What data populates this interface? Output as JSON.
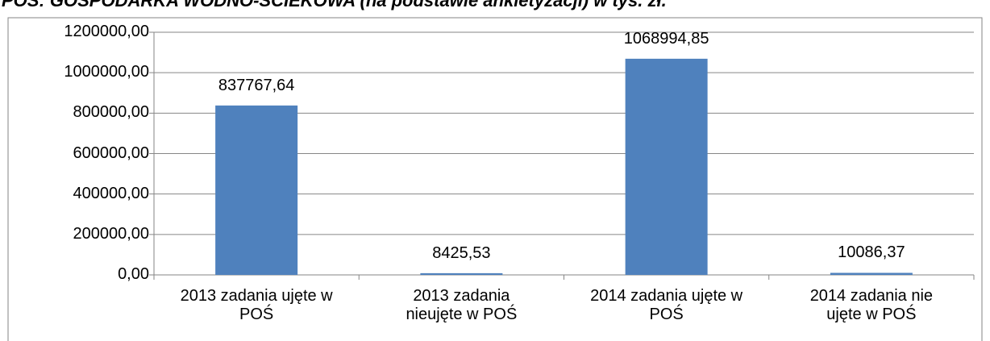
{
  "chart_data": {
    "type": "bar",
    "title": "POŚ: GOSPODARKA WODNO-ŚCIEKOWA (na podstawie ankietyzacji) w tys. zł.",
    "categories": [
      "2013 zadania ujęte w\nPOŚ",
      "2013 zadania\nnieujęte w POŚ",
      "2014 zadania ujęte w\nPOŚ",
      "2014 zadania nie\nujęte w POŚ"
    ],
    "values": [
      837767.64,
      8425.53,
      1068994.85,
      10086.37
    ],
    "value_labels": [
      "837767,64",
      "8425,53",
      "1068994,85",
      "10086,37"
    ],
    "color": "#4f81bd",
    "ylim": [
      0,
      1200000
    ],
    "yticks": [
      {
        "value": 0,
        "label": "0,00"
      },
      {
        "value": 200000,
        "label": "200000,00"
      },
      {
        "value": 400000,
        "label": "400000,00"
      },
      {
        "value": 600000,
        "label": "600000,00"
      },
      {
        "value": 800000,
        "label": "800000,00"
      },
      {
        "value": 1000000,
        "label": "1000000,00"
      },
      {
        "value": 1200000,
        "label": "1200000,00"
      }
    ],
    "grid": true
  }
}
